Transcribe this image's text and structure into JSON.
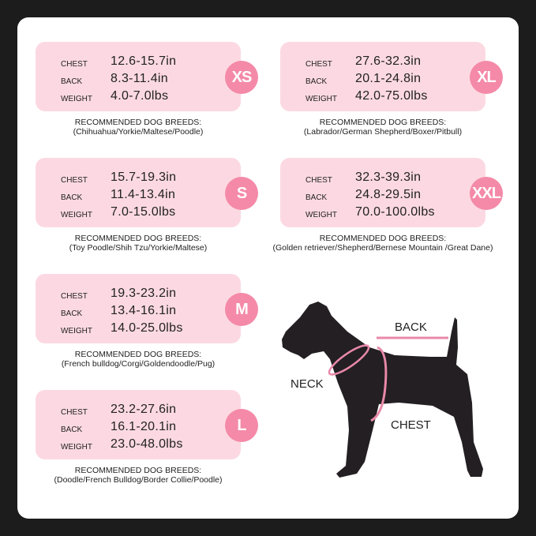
{
  "sizes": [
    {
      "size": "XS",
      "chest": "12.6-15.7in",
      "back": "8.3-11.4in",
      "weight": "4.0-7.0lbs",
      "breeds": "(Chihuahua/Yorkie/Maltese/Poodle)"
    },
    {
      "size": "S",
      "chest": "15.7-19.3in",
      "back": "11.4-13.4in",
      "weight": "7.0-15.0lbs",
      "breeds": "(Toy Poodle/Shih Tzu/Yorkie/Maltese)"
    },
    {
      "size": "M",
      "chest": "19.3-23.2in",
      "back": "13.4-16.1in",
      "weight": "14.0-25.0lbs",
      "breeds": "(French bulldog/Corgi/Goldendoodle/Pug)"
    },
    {
      "size": "L",
      "chest": "23.2-27.6in",
      "back": "16.1-20.1in",
      "weight": "23.0-48.0lbs",
      "breeds": "(Doodle/French Bulldog/Border Collie/Poodle)"
    },
    {
      "size": "XL",
      "chest": "27.6-32.3in",
      "back": "20.1-24.8in",
      "weight": "42.0-75.0lbs",
      "breeds": "(Labrador/German Shepherd/Boxer/Pitbull)"
    },
    {
      "size": "XXL",
      "chest": "32.3-39.3in",
      "back": "24.8-29.5in",
      "weight": "70.0-100.0lbs",
      "breeds": "(Golden retriever/Shepherd/Bernese Mountain /Great Dane)"
    }
  ],
  "labels": {
    "chest": "CHEST",
    "back": "BACK",
    "weight": "WEIGHT",
    "recommended": "RECOMMENDED DOG BREEDS:"
  },
  "diagram": {
    "back": "BACK",
    "neck": "NECK",
    "chest": "CHEST"
  },
  "colors": {
    "card": "#fcd9e2",
    "badge": "#f48aa8",
    "accent": "#e889a8"
  }
}
